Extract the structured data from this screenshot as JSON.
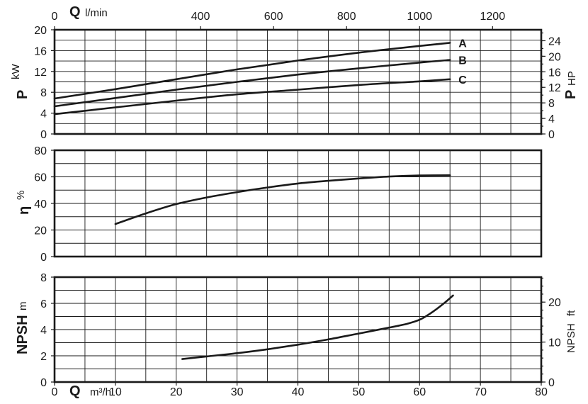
{
  "chart_data": [
    {
      "type": "line",
      "panel": "power",
      "top_axis": {
        "symbol": "Q",
        "unit": "l/min",
        "ticks": [
          "0",
          "400",
          "600",
          "800",
          "1000",
          "1200"
        ],
        "values": [
          0,
          400,
          600,
          800,
          1000,
          1200
        ]
      },
      "left_axis": {
        "symbol": "P",
        "unit": "kW",
        "ticks": [
          "0",
          "4",
          "8",
          "12",
          "16",
          "20"
        ],
        "values": [
          0,
          4,
          8,
          12,
          16,
          20
        ],
        "ylim": [
          0,
          20
        ]
      },
      "right_axis": {
        "symbol": "P",
        "unit": "HP",
        "ticks": [
          "0",
          "4",
          "8",
          "12",
          "16",
          "20",
          "24"
        ],
        "values": [
          0,
          4,
          8,
          12,
          16,
          20,
          24
        ]
      },
      "xlim": [
        0,
        80
      ],
      "grid": true,
      "series": [
        {
          "name": "A",
          "x": [
            0,
            10,
            20,
            30,
            40,
            50,
            60,
            65
          ],
          "y": [
            6.8,
            8.6,
            10.5,
            12.4,
            14.1,
            15.6,
            16.9,
            17.5
          ]
        },
        {
          "name": "B",
          "x": [
            0,
            10,
            20,
            30,
            40,
            50,
            60,
            65
          ],
          "y": [
            5.3,
            6.9,
            8.5,
            10.0,
            11.4,
            12.6,
            13.7,
            14.2
          ]
        },
        {
          "name": "C",
          "x": [
            0,
            10,
            20,
            30,
            40,
            50,
            60,
            65
          ],
          "y": [
            3.8,
            5.1,
            6.4,
            7.6,
            8.5,
            9.4,
            10.1,
            10.5
          ]
        }
      ]
    },
    {
      "type": "line",
      "panel": "efficiency",
      "left_axis": {
        "symbol": "η",
        "unit": "%",
        "ticks": [
          "0",
          "20",
          "40",
          "60",
          "80"
        ],
        "values": [
          0,
          20,
          40,
          60,
          80
        ],
        "ylim": [
          0,
          80
        ]
      },
      "xlim": [
        0,
        80
      ],
      "grid": true,
      "series": [
        {
          "x": [
            10,
            15,
            20,
            25,
            30,
            35,
            40,
            45,
            50,
            55,
            60,
            65
          ],
          "y": [
            24.5,
            32.5,
            39.5,
            44.5,
            48.5,
            52,
            55,
            57,
            58.8,
            60.2,
            61,
            61.2
          ]
        }
      ]
    },
    {
      "type": "line",
      "panel": "npsh",
      "left_axis": {
        "symbol": "NPSH",
        "unit": "m",
        "ticks": [
          "0",
          "2",
          "4",
          "6",
          "8"
        ],
        "values": [
          0,
          2,
          4,
          6,
          8
        ],
        "ylim": [
          0,
          8
        ]
      },
      "right_axis": {
        "symbol": "NPSH",
        "unit": "ft",
        "ticks": [
          "0",
          "10",
          "20"
        ],
        "values": [
          0,
          10,
          20
        ]
      },
      "bottom_axis": {
        "symbol": "Q",
        "unit": "m³/h",
        "ticks": [
          "0",
          "10",
          "20",
          "30",
          "40",
          "50",
          "60",
          "70",
          "80"
        ],
        "values": [
          0,
          10,
          20,
          30,
          40,
          50,
          60,
          70,
          80
        ]
      },
      "xlim": [
        0,
        80
      ],
      "grid": true,
      "series": [
        {
          "x": [
            21,
            25,
            30,
            35,
            40,
            45,
            50,
            55,
            58,
            60,
            62,
            64,
            65.5
          ],
          "y": [
            1.75,
            1.95,
            2.2,
            2.5,
            2.85,
            3.25,
            3.7,
            4.15,
            4.45,
            4.75,
            5.3,
            6.0,
            6.6
          ]
        }
      ]
    }
  ]
}
